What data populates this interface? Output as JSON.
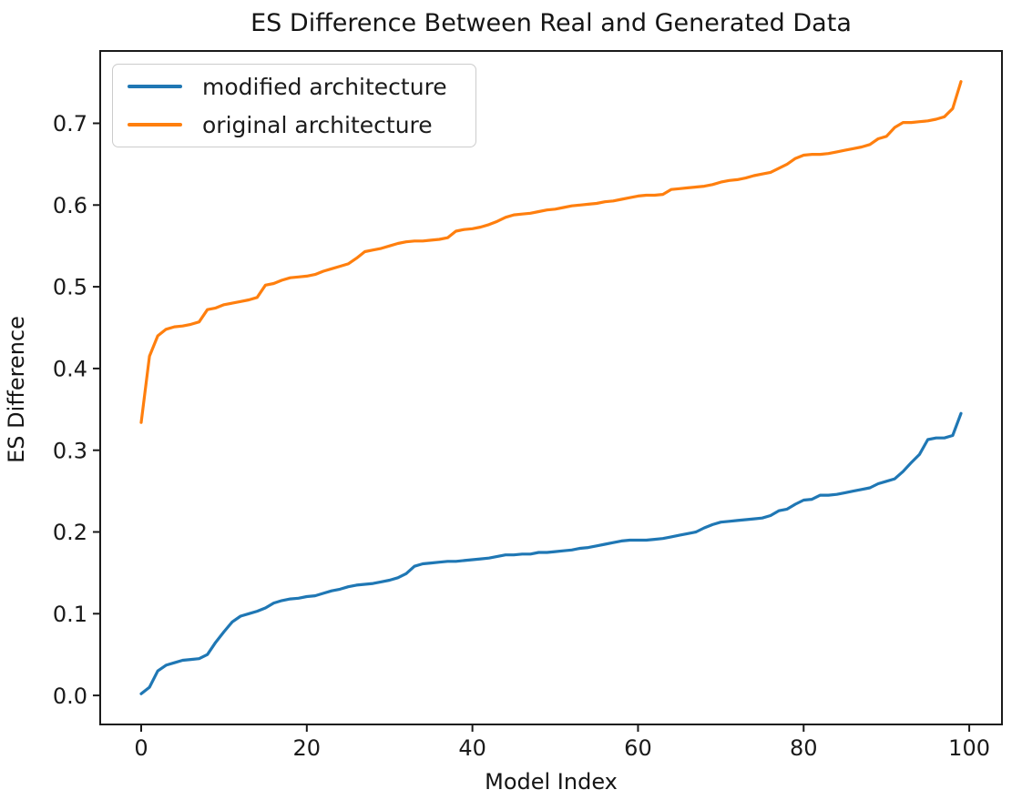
{
  "chart_data": {
    "type": "line",
    "title": "ES Difference Between Real and Generated Data",
    "xlabel": "Model Index",
    "ylabel": "ES Difference",
    "grid": false,
    "legend_position": "upper left",
    "xlim": [
      -4.95,
      103.95
    ],
    "ylim": [
      -0.0355,
      0.7885
    ],
    "x_ticks": [
      0,
      20,
      40,
      60,
      80,
      100
    ],
    "x_tick_labels": [
      "0",
      "20",
      "40",
      "60",
      "80",
      "100"
    ],
    "y_ticks": [
      0.0,
      0.1,
      0.2,
      0.3,
      0.4,
      0.5,
      0.6,
      0.7
    ],
    "y_tick_labels": [
      "0.0",
      "0.1",
      "0.2",
      "0.3",
      "0.4",
      "0.5",
      "0.6",
      "0.7"
    ],
    "x_start": 0,
    "x_step": 1,
    "series": [
      {
        "name": "modified architecture",
        "color": "#1f77b4",
        "values": [
          0.002,
          0.01,
          0.03,
          0.037,
          0.04,
          0.043,
          0.044,
          0.045,
          0.05,
          0.065,
          0.078,
          0.09,
          0.097,
          0.1,
          0.103,
          0.107,
          0.113,
          0.116,
          0.118,
          0.119,
          0.121,
          0.122,
          0.125,
          0.128,
          0.13,
          0.133,
          0.135,
          0.136,
          0.137,
          0.139,
          0.141,
          0.144,
          0.149,
          0.158,
          0.161,
          0.162,
          0.163,
          0.164,
          0.164,
          0.165,
          0.166,
          0.167,
          0.168,
          0.17,
          0.172,
          0.172,
          0.173,
          0.173,
          0.175,
          0.175,
          0.176,
          0.177,
          0.178,
          0.18,
          0.181,
          0.183,
          0.185,
          0.187,
          0.189,
          0.19,
          0.19,
          0.19,
          0.191,
          0.192,
          0.194,
          0.196,
          0.198,
          0.2,
          0.205,
          0.209,
          0.212,
          0.213,
          0.214,
          0.215,
          0.216,
          0.217,
          0.22,
          0.226,
          0.228,
          0.234,
          0.239,
          0.24,
          0.245,
          0.245,
          0.246,
          0.248,
          0.25,
          0.252,
          0.254,
          0.259,
          0.262,
          0.265,
          0.274,
          0.285,
          0.295,
          0.313,
          0.315,
          0.315,
          0.318,
          0.345
        ]
      },
      {
        "name": "original architecture",
        "color": "#ff7f0e",
        "values": [
          0.334,
          0.415,
          0.44,
          0.448,
          0.451,
          0.452,
          0.454,
          0.457,
          0.472,
          0.474,
          0.478,
          0.48,
          0.482,
          0.484,
          0.487,
          0.502,
          0.504,
          0.508,
          0.511,
          0.512,
          0.513,
          0.515,
          0.519,
          0.522,
          0.525,
          0.528,
          0.535,
          0.543,
          0.545,
          0.547,
          0.55,
          0.553,
          0.555,
          0.556,
          0.556,
          0.557,
          0.558,
          0.56,
          0.568,
          0.57,
          0.571,
          0.573,
          0.576,
          0.58,
          0.585,
          0.588,
          0.589,
          0.59,
          0.592,
          0.594,
          0.595,
          0.597,
          0.599,
          0.6,
          0.601,
          0.602,
          0.604,
          0.605,
          0.607,
          0.609,
          0.611,
          0.612,
          0.612,
          0.613,
          0.619,
          0.62,
          0.621,
          0.622,
          0.623,
          0.625,
          0.628,
          0.63,
          0.631,
          0.633,
          0.636,
          0.638,
          0.64,
          0.645,
          0.65,
          0.657,
          0.661,
          0.662,
          0.662,
          0.663,
          0.665,
          0.667,
          0.669,
          0.671,
          0.674,
          0.681,
          0.684,
          0.695,
          0.701,
          0.701,
          0.702,
          0.703,
          0.705,
          0.708,
          0.718,
          0.751
        ]
      }
    ]
  }
}
